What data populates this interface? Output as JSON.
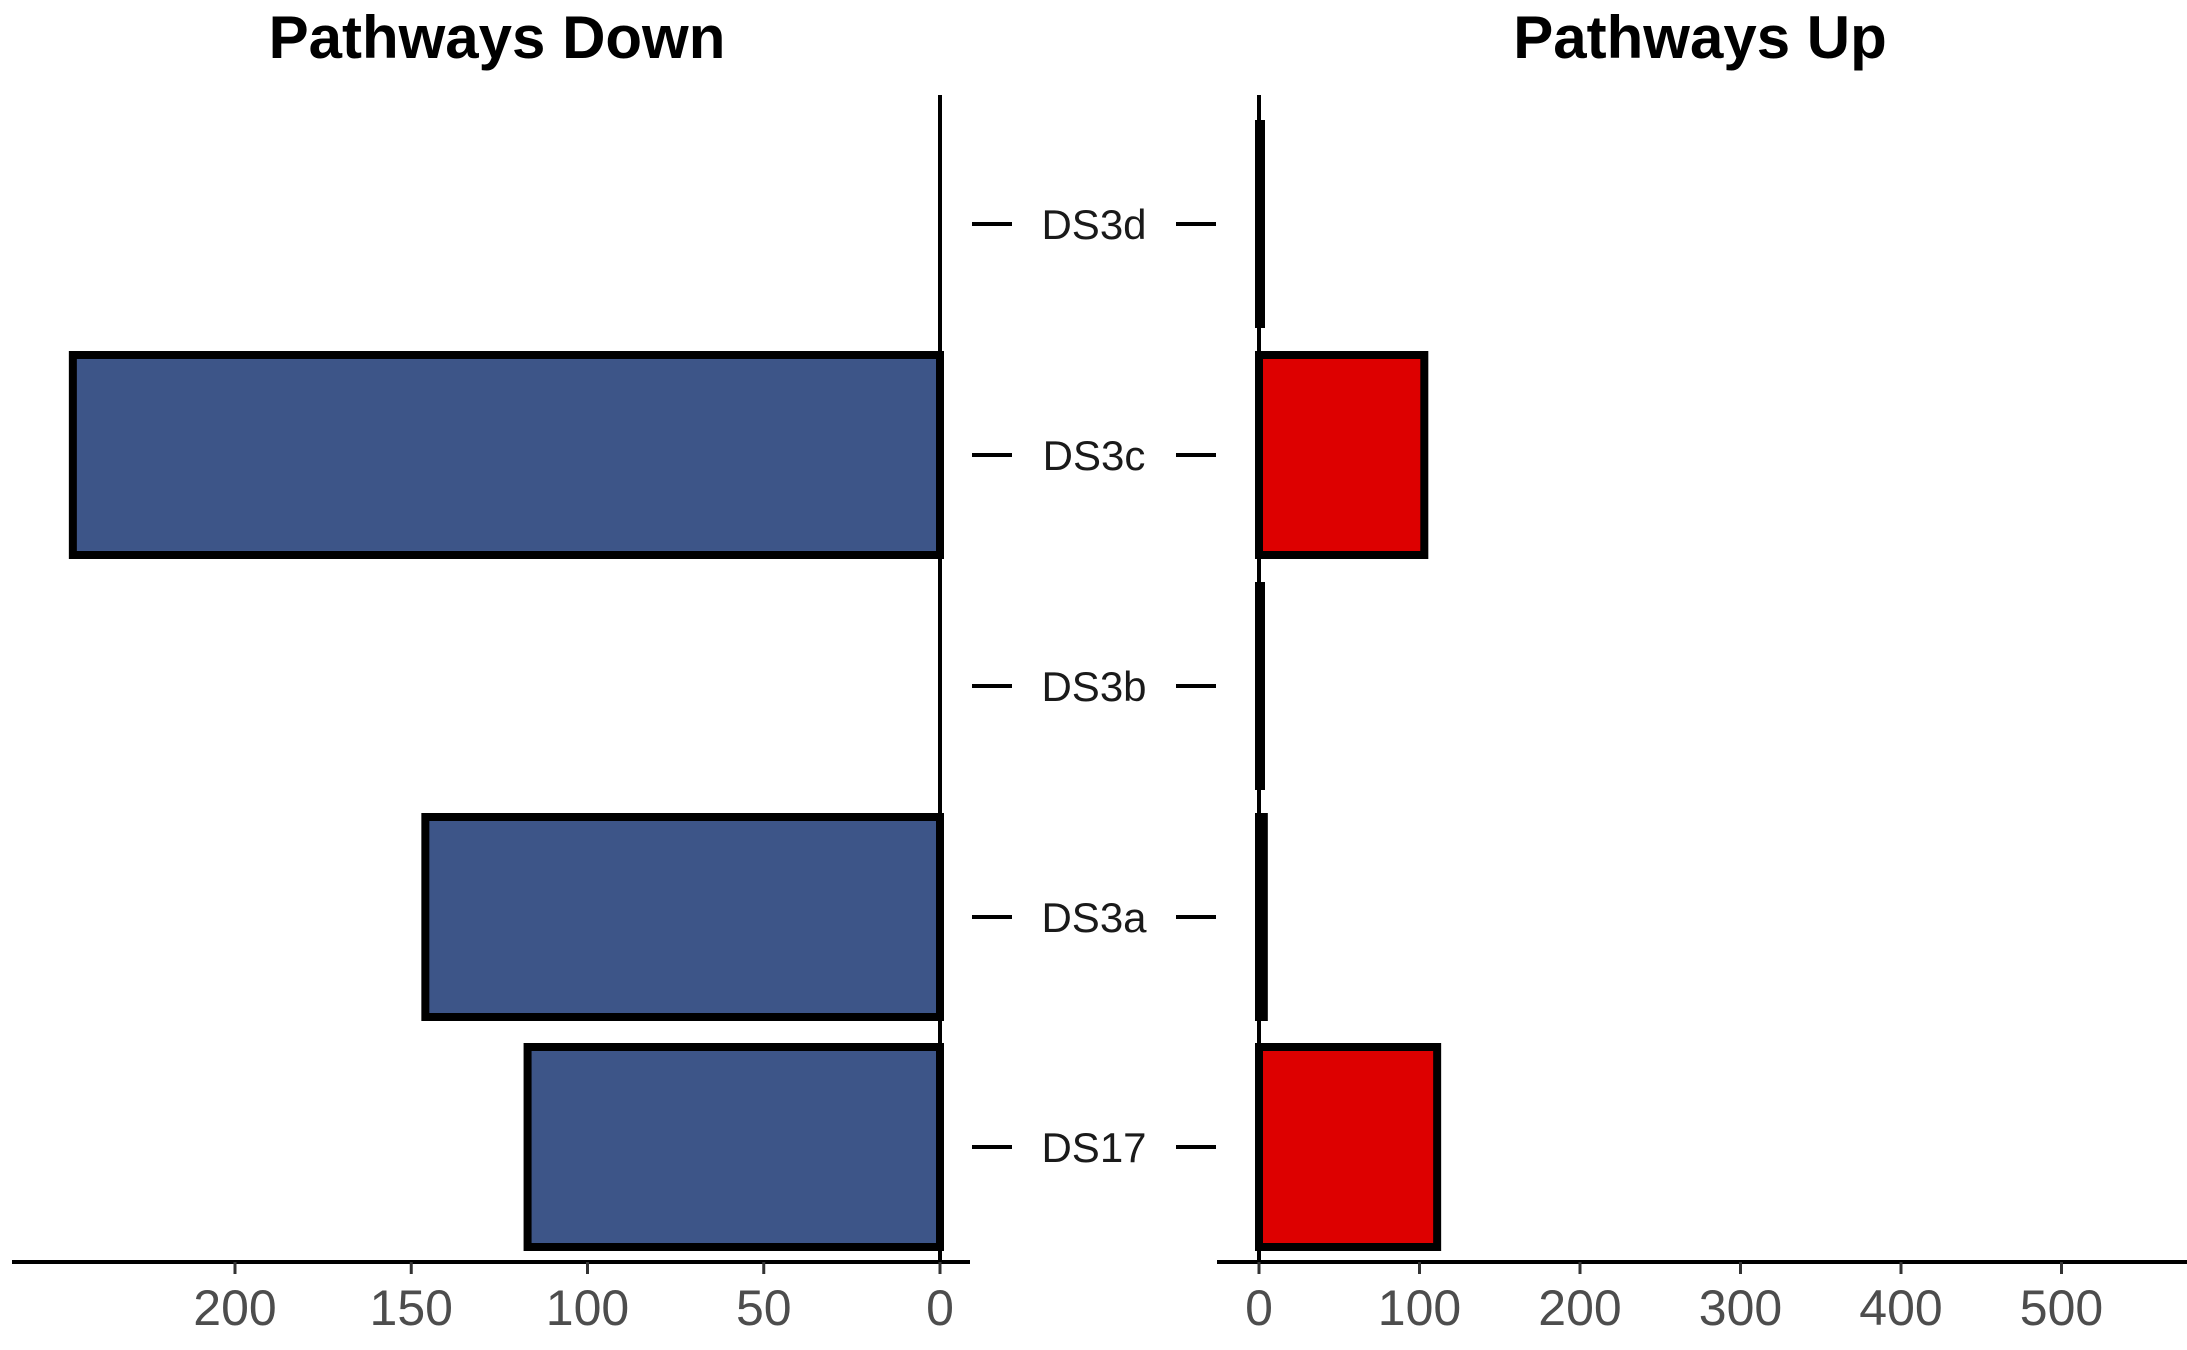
{
  "chart_data": [
    {
      "type": "bar",
      "orientation": "horizontal",
      "direction": "reversed",
      "title": "Pathways Down",
      "categories": [
        "DS3d",
        "DS3c",
        "DS3b",
        "DS3a",
        "DS17"
      ],
      "values": [
        0,
        246,
        0,
        146,
        117
      ],
      "xticks": [
        200,
        150,
        100,
        50,
        0
      ],
      "xlim": [
        0,
        260
      ],
      "bar_color": "#3d5588",
      "edge_color": "#000000"
    },
    {
      "type": "bar",
      "orientation": "horizontal",
      "title": "Pathways Up",
      "categories": [
        "DS3d",
        "DS3c",
        "DS3b",
        "DS3a",
        "DS17"
      ],
      "values": [
        1,
        103,
        0,
        3,
        111
      ],
      "xticks": [
        0,
        100,
        200,
        300,
        400,
        500
      ],
      "xlim": [
        0,
        575
      ],
      "bar_color": "#dd0000",
      "edge_color": "#000000"
    }
  ]
}
